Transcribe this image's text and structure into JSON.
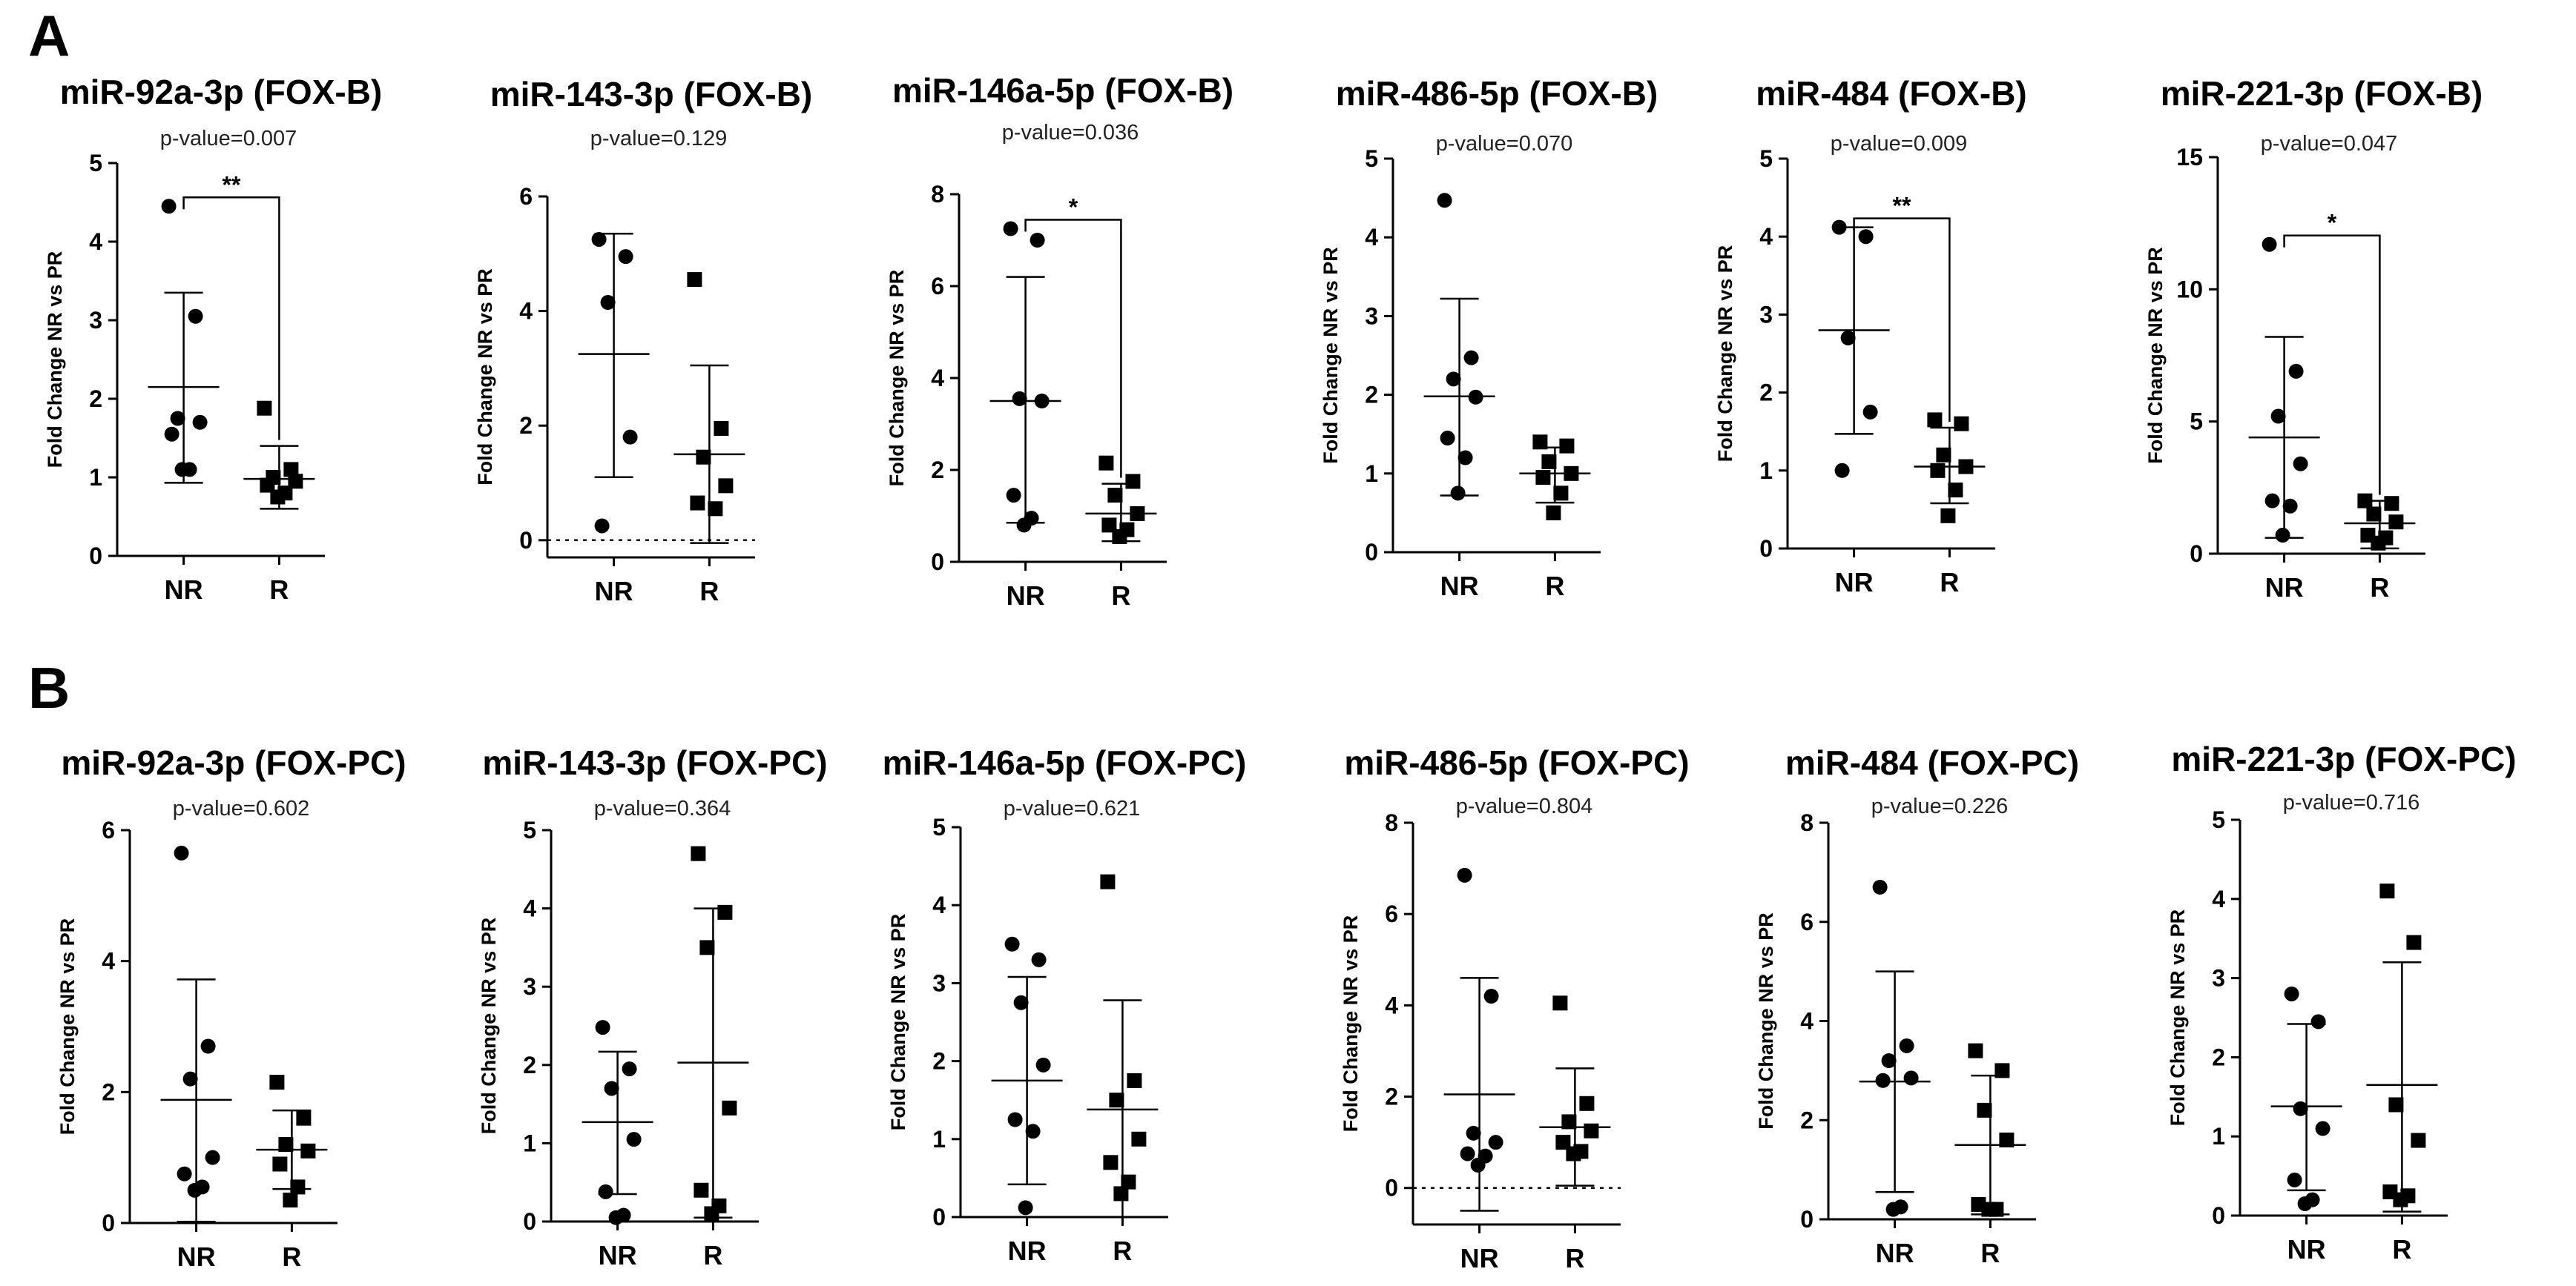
{
  "panels": [
    {
      "label": "A",
      "charts": [
        {
          "title": "miR-92a-3p (FOX-B)",
          "pvalue": "p-value=0.007",
          "sig": "**",
          "ylim": [
            0,
            5
          ],
          "yticks": [
            0,
            1,
            2,
            3,
            4,
            5
          ],
          "zero_line": false,
          "nr": {
            "mean": 2.15,
            "sd_low": 0.93,
            "sd_high": 3.35,
            "values": [
              4.45,
              3.05,
              1.75,
              1.7,
              1.55,
              1.1,
              1.1
            ]
          },
          "r": {
            "mean": 0.98,
            "sd_low": 0.6,
            "sd_high": 1.4,
            "values": [
              1.88,
              1.1,
              1.0,
              0.95,
              0.9,
              0.8,
              0.75
            ]
          }
        },
        {
          "title": "miR-143-3p (FOX-B)",
          "pvalue": "p-value=0.129",
          "sig": "",
          "ylim": [
            -0.3,
            6
          ],
          "yticks": [
            0,
            2,
            4,
            6
          ],
          "zero_line": true,
          "nr": {
            "mean": 3.25,
            "sd_low": 1.1,
            "sd_high": 5.35,
            "values": [
              5.25,
              4.95,
              4.15,
              1.8,
              0.25
            ]
          },
          "r": {
            "mean": 1.5,
            "sd_low": -0.05,
            "sd_high": 3.05,
            "values": [
              4.55,
              1.95,
              1.45,
              0.95,
              0.65,
              0.55
            ]
          }
        },
        {
          "title": "miR-146a-5p (FOX-B)",
          "pvalue": "p-value=0.036",
          "sig": "*",
          "ylim": [
            0,
            8
          ],
          "yticks": [
            0,
            2,
            4,
            6,
            8
          ],
          "zero_line": false,
          "nr": {
            "mean": 3.5,
            "sd_low": 0.85,
            "sd_high": 6.2,
            "values": [
              7.25,
              7.0,
              3.55,
              3.5,
              1.45,
              0.95,
              0.8
            ]
          },
          "r": {
            "mean": 1.05,
            "sd_low": 0.45,
            "sd_high": 1.7,
            "values": [
              2.15,
              1.75,
              1.45,
              1.05,
              0.8,
              0.7,
              0.55
            ]
          }
        },
        {
          "title": "miR-486-5p (FOX-B)",
          "pvalue": "p-value=0.070",
          "sig": "",
          "ylim": [
            0,
            5
          ],
          "yticks": [
            0,
            1,
            2,
            3,
            4,
            5
          ],
          "zero_line": false,
          "nr": {
            "mean": 1.98,
            "sd_low": 0.72,
            "sd_high": 3.22,
            "values": [
              4.47,
              2.47,
              2.2,
              1.97,
              1.45,
              1.2,
              0.75
            ]
          },
          "r": {
            "mean": 1.0,
            "sd_low": 0.63,
            "sd_high": 1.33,
            "values": [
              1.4,
              1.35,
              1.15,
              1.0,
              0.95,
              0.75,
              0.5
            ]
          }
        },
        {
          "title": "miR-484 (FOX-B)",
          "pvalue": "p-value=0.009",
          "sig": "**",
          "ylim": [
            0,
            5
          ],
          "yticks": [
            0,
            1,
            2,
            3,
            4,
            5
          ],
          "zero_line": false,
          "nr": {
            "mean": 2.8,
            "sd_low": 1.47,
            "sd_high": 4.12,
            "values": [
              4.12,
              4.0,
              2.7,
              1.75,
              1.0
            ]
          },
          "r": {
            "mean": 1.05,
            "sd_low": 0.58,
            "sd_high": 1.55,
            "values": [
              1.65,
              1.6,
              1.2,
              1.05,
              1.0,
              0.75,
              0.42
            ]
          }
        },
        {
          "title": "miR-221-3p (FOX-B)",
          "pvalue": "p-value=0.047",
          "sig": "*",
          "ylim": [
            0,
            15
          ],
          "yticks": [
            0,
            5,
            10,
            15
          ],
          "zero_line": true,
          "nr": {
            "mean": 4.4,
            "sd_low": 0.6,
            "sd_high": 8.2,
            "values": [
              11.7,
              6.9,
              5.2,
              3.4,
              2.0,
              1.8,
              0.7
            ]
          },
          "r": {
            "mean": 1.15,
            "sd_low": 0.2,
            "sd_high": 2.0,
            "values": [
              2.0,
              1.9,
              1.5,
              1.2,
              0.7,
              0.6,
              0.4
            ]
          }
        }
      ]
    },
    {
      "label": "B",
      "charts": [
        {
          "title": "miR-92a-3p (FOX-PC)",
          "pvalue": "p-value=0.602",
          "sig": "",
          "ylim": [
            0,
            6
          ],
          "yticks": [
            0,
            2,
            4,
            6
          ],
          "zero_line": false,
          "nr": {
            "mean": 1.88,
            "sd_low": 0.02,
            "sd_high": 3.72,
            "values": [
              5.65,
              2.7,
              2.2,
              1.0,
              0.75,
              0.55,
              0.5
            ]
          },
          "r": {
            "mean": 1.12,
            "sd_low": 0.52,
            "sd_high": 1.72,
            "values": [
              2.15,
              1.6,
              1.2,
              1.1,
              0.9,
              0.55,
              0.35
            ]
          }
        },
        {
          "title": "miR-143-3p (FOX-PC)",
          "pvalue": "p-value=0.364",
          "sig": "",
          "ylim": [
            0,
            5
          ],
          "yticks": [
            0,
            1,
            2,
            3,
            4,
            5
          ],
          "zero_line": false,
          "nr": {
            "mean": 1.27,
            "sd_low": 0.35,
            "sd_high": 2.17,
            "values": [
              2.48,
              1.95,
              1.7,
              1.05,
              0.38,
              0.08,
              0.05
            ]
          },
          "r": {
            "mean": 2.03,
            "sd_low": 0.05,
            "sd_high": 4.0,
            "values": [
              4.7,
              3.95,
              3.5,
              1.45,
              0.4,
              0.2,
              0.1
            ]
          }
        },
        {
          "title": "miR-146a-5p (FOX-PC)",
          "pvalue": "p-value=0.621",
          "sig": "",
          "ylim": [
            0,
            5
          ],
          "yticks": [
            0,
            1,
            2,
            3,
            4,
            5
          ],
          "zero_line": false,
          "nr": {
            "mean": 1.75,
            "sd_low": 0.42,
            "sd_high": 3.08,
            "values": [
              3.5,
              3.3,
              2.75,
              1.95,
              1.25,
              1.1,
              0.12
            ]
          },
          "r": {
            "mean": 1.38,
            "sd_low": 0.0,
            "sd_high": 2.78,
            "values": [
              4.3,
              1.75,
              1.5,
              1.0,
              0.7,
              0.45,
              0.3
            ]
          }
        },
        {
          "title": "miR-486-5p (FOX-PC)",
          "pvalue": "p-value=0.804",
          "sig": "",
          "ylim": [
            -0.8,
            8
          ],
          "yticks": [
            0,
            2,
            4,
            6,
            8
          ],
          "zero_line": true,
          "nr": {
            "mean": 2.05,
            "sd_low": -0.5,
            "sd_high": 4.6,
            "values": [
              6.85,
              4.2,
              1.2,
              1.0,
              0.75,
              0.7,
              0.5
            ]
          },
          "r": {
            "mean": 1.33,
            "sd_low": 0.05,
            "sd_high": 2.62,
            "values": [
              4.05,
              1.85,
              1.45,
              1.25,
              1.0,
              0.8,
              0.75
            ]
          }
        },
        {
          "title": "miR-484 (FOX-PC)",
          "pvalue": "p-value=0.226",
          "sig": "",
          "ylim": [
            0,
            8
          ],
          "yticks": [
            0,
            2,
            4,
            6,
            8
          ],
          "zero_line": false,
          "nr": {
            "mean": 2.78,
            "sd_low": 0.55,
            "sd_high": 5.0,
            "values": [
              6.7,
              3.5,
              3.2,
              2.85,
              2.8,
              0.25,
              0.2
            ]
          },
          "r": {
            "mean": 1.5,
            "sd_low": 0.1,
            "sd_high": 2.9,
            "values": [
              3.4,
              3.0,
              2.2,
              1.6,
              0.3,
              0.2,
              0.2
            ]
          }
        },
        {
          "title": "miR-221-3p (FOX-PC)",
          "pvalue": "p-value=0.716",
          "sig": "",
          "ylim": [
            0,
            5
          ],
          "yticks": [
            0,
            1,
            2,
            3,
            4,
            5
          ],
          "zero_line": false,
          "nr": {
            "mean": 1.38,
            "sd_low": 0.32,
            "sd_high": 2.42,
            "values": [
              2.8,
              2.45,
              1.35,
              1.1,
              0.45,
              0.2,
              0.15
            ]
          },
          "r": {
            "mean": 1.65,
            "sd_low": 0.05,
            "sd_high": 3.2,
            "values": [
              4.1,
              3.45,
              1.4,
              0.95,
              0.3,
              0.25,
              0.2
            ]
          }
        }
      ]
    }
  ],
  "axis": {
    "ylabel": "Fold Change NR vs PR",
    "x_categories": [
      "NR",
      "R"
    ]
  }
}
